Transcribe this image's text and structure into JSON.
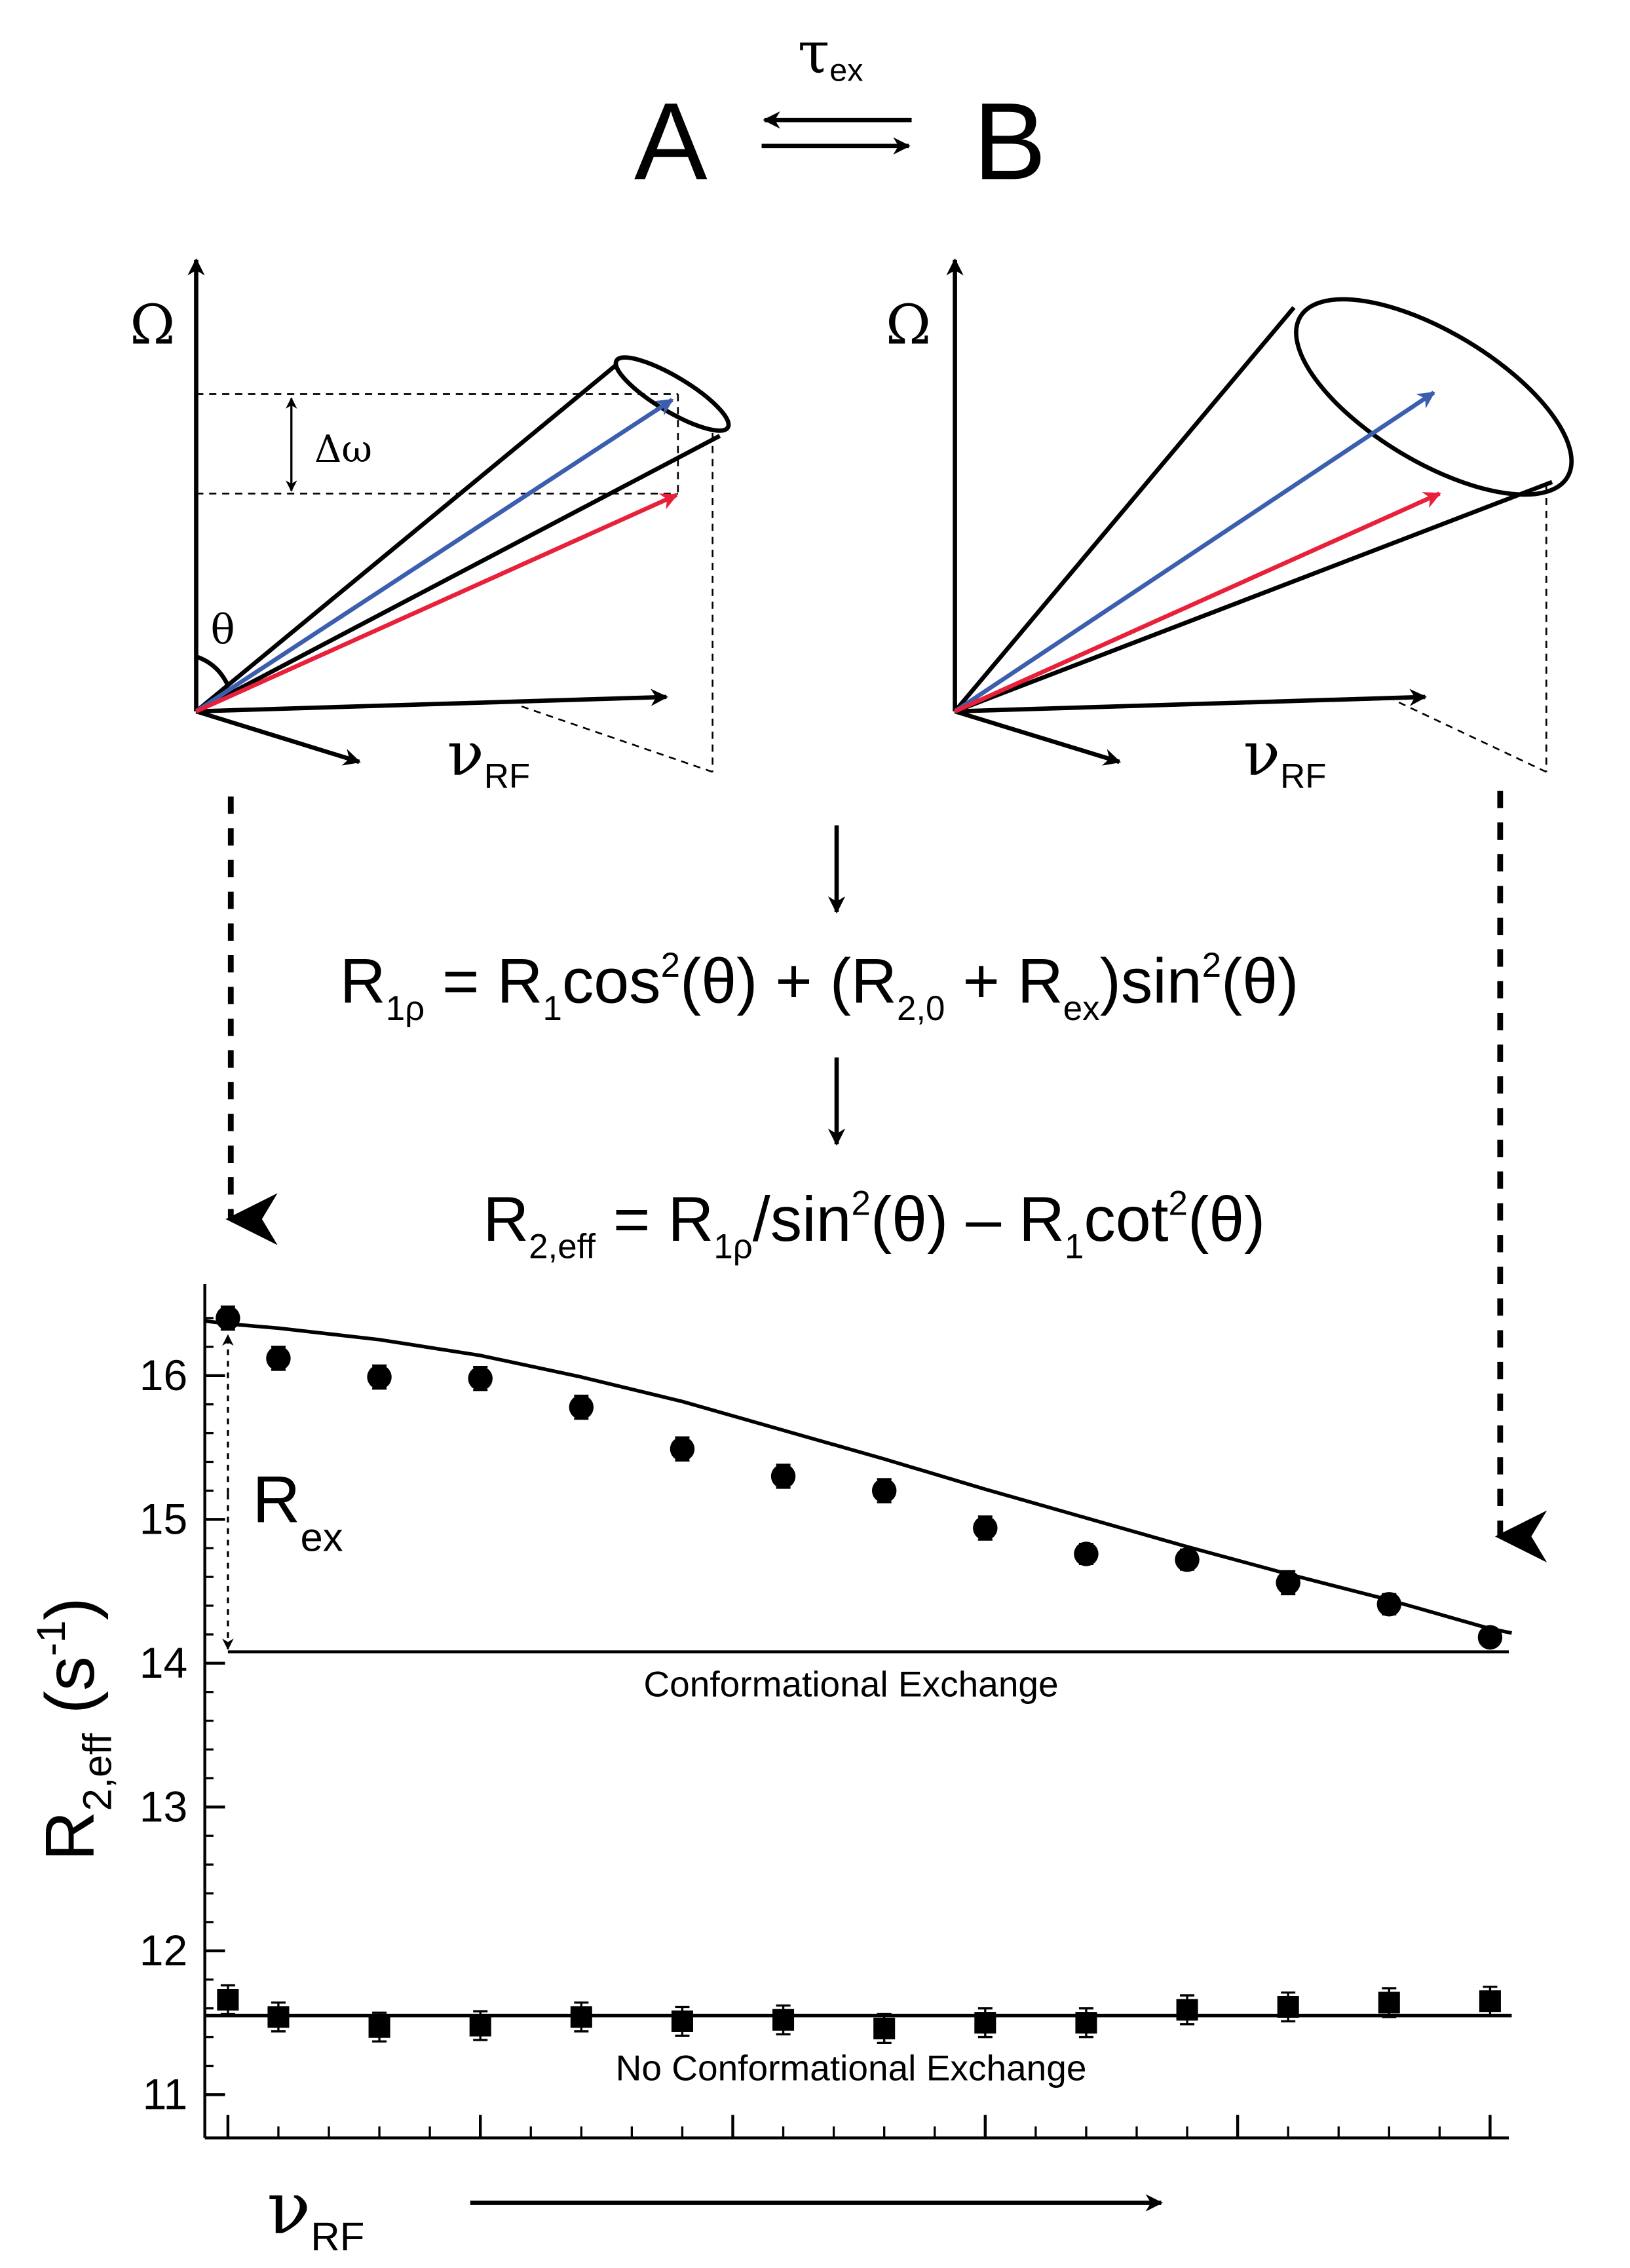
{
  "exchange": {
    "tau_symbol": "τ",
    "tau_subscript": "ex",
    "state_a": "A",
    "state_b": "B",
    "color_a": "#3b5fae",
    "color_b": "#e8203a"
  },
  "vector_diagrams": {
    "omega_label": "Ω",
    "delta_omega_label": "Δω",
    "theta_label": "θ",
    "nu_symbol": "ν",
    "nu_subscript": "RF",
    "blue_vector_color": "#3b5fae",
    "red_vector_color": "#e8203a"
  },
  "equations": {
    "r1rho": {
      "R": "R",
      "sub_1rho": "1ρ",
      "eq": " = ",
      "R1": "R",
      "sub_1": "1",
      "cos": "cos",
      "sup_2a": "2",
      "theta_part_a": "(θ) + (",
      "R20": "R",
      "sub_20": "2,0",
      "plus": " + ",
      "Rex": "R",
      "sub_ex": "ex",
      "close_sin": ")sin",
      "sup_2b": "2",
      "theta_part_b": "(θ)"
    },
    "r2eff": {
      "R": "R",
      "sub_2eff": "2,eff",
      "eq": " = ",
      "R1rho": "R",
      "sub_1rho": "1ρ",
      "slash_sin": "/sin",
      "sup_2a": "2",
      "theta_minus": "(θ) – ",
      "R1": "R",
      "sub_1": "1",
      "cot": "cot",
      "sup_2b": "2",
      "theta_end": "(θ)"
    }
  },
  "chart_data": {
    "type": "scatter",
    "ylabel_main": "R",
    "ylabel_sub": "2,eff",
    "ylabel_unit_open": " (s",
    "ylabel_unit_sup": "-1",
    "ylabel_unit_close": ")",
    "xlabel_symbol": "ν",
    "xlabel_sub": "RF",
    "ylim": [
      10.75,
      16.6
    ],
    "yticks": [
      11,
      12,
      13,
      14,
      15,
      16
    ],
    "x": [
      0,
      1,
      3,
      5,
      7,
      9,
      11,
      13,
      15,
      17,
      19,
      21,
      23,
      25
    ],
    "rex_label_main": "R",
    "rex_label_sub": "ex",
    "series": [
      {
        "name": "Conformational Exchange",
        "marker": "circle",
        "values": [
          16.4,
          16.12,
          15.99,
          15.98,
          15.78,
          15.49,
          15.3,
          15.2,
          14.94,
          14.76,
          14.72,
          14.56,
          14.41,
          14.18
        ],
        "errors": [
          0.08,
          0.08,
          0.08,
          0.08,
          0.08,
          0.08,
          0.08,
          0.08,
          0.08,
          0.07,
          0.07,
          0.08,
          0.07,
          0.06
        ],
        "fit": [
          16.36,
          16.33,
          16.25,
          16.14,
          15.99,
          15.82,
          15.62,
          15.42,
          15.21,
          15.01,
          14.81,
          14.62,
          14.44,
          14.24
        ]
      },
      {
        "name": "No Conformational Exchange",
        "marker": "square",
        "values": [
          11.66,
          11.54,
          11.47,
          11.48,
          11.54,
          11.51,
          11.52,
          11.46,
          11.5,
          11.5,
          11.59,
          11.61,
          11.64,
          11.65
        ],
        "errors": [
          0.1,
          0.1,
          0.1,
          0.1,
          0.1,
          0.1,
          0.1,
          0.1,
          0.1,
          0.1,
          0.1,
          0.1,
          0.1,
          0.1
        ],
        "fit_level": 11.55
      }
    ]
  }
}
